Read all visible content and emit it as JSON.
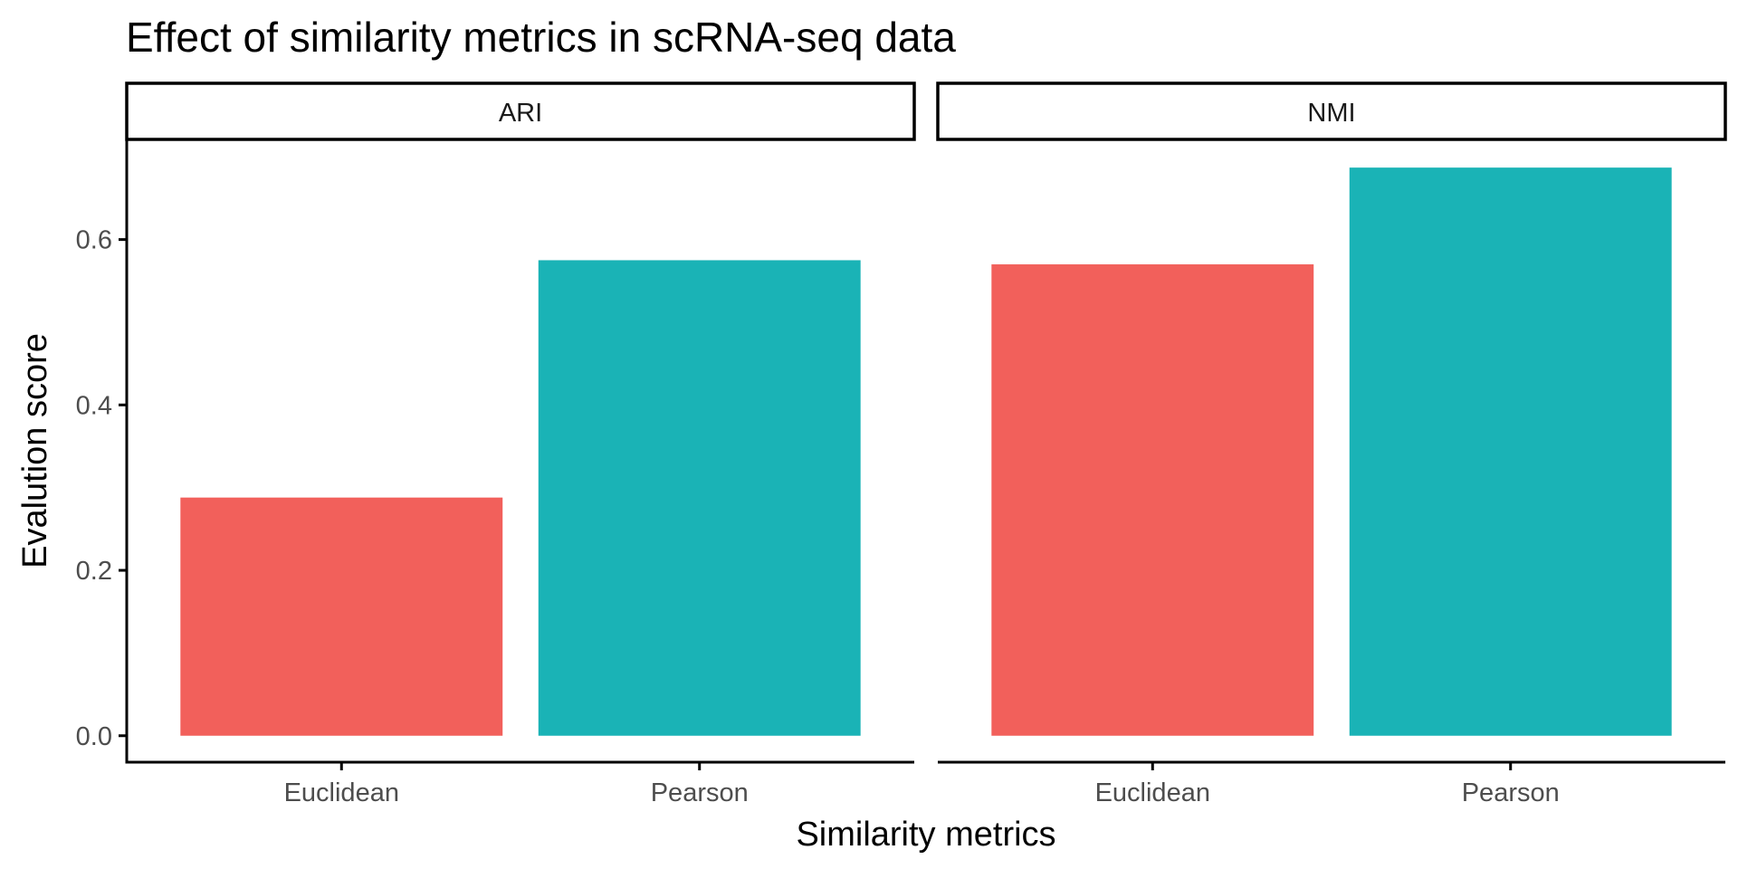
{
  "chart_data": {
    "type": "bar",
    "title": "Effect of similarity metrics in scRNA-seq data",
    "xlabel": "Similarity metrics",
    "ylabel": "Evalution score",
    "ylim": [
      -0.032,
      0.72
    ],
    "yticks": [
      0.0,
      0.2,
      0.4,
      0.6
    ],
    "ytick_labels": [
      "0.0",
      "0.2",
      "0.4",
      "0.6"
    ],
    "categories": [
      "Euclidean",
      "Pearson"
    ],
    "colors": {
      "Euclidean": "#F2605B",
      "Pearson": "#1AB3B6"
    },
    "grid": false,
    "legend": "none",
    "facets": [
      {
        "label": "ARI",
        "values": [
          0.288,
          0.575
        ]
      },
      {
        "label": "NMI",
        "values": [
          0.57,
          0.687
        ]
      }
    ]
  }
}
